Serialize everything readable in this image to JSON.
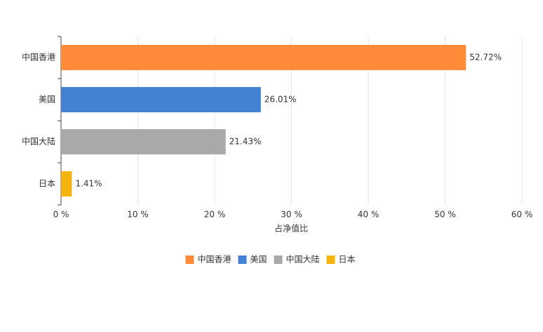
{
  "chart_data": {
    "type": "bar",
    "orientation": "horizontal",
    "categories": [
      "中国香港",
      "美国",
      "中国大陆",
      "日本"
    ],
    "values": [
      52.72,
      26.01,
      21.43,
      1.41
    ],
    "value_labels": [
      "52.72%",
      "26.01%",
      "21.43%",
      "1.41%"
    ],
    "colors": [
      "#ff8a3a",
      "#4282d2",
      "#a9a9a9",
      "#f6b50e"
    ],
    "x_label": "占净值比",
    "xlim": [
      0,
      60
    ],
    "xticks": [
      {
        "value": 0,
        "label": "0 %"
      },
      {
        "value": 10,
        "label": "10 %"
      },
      {
        "value": 20,
        "label": "20 %"
      },
      {
        "value": 30,
        "label": "30 %"
      },
      {
        "value": 40,
        "label": "40 %"
      },
      {
        "value": 50,
        "label": "50 %"
      },
      {
        "value": 60,
        "label": "60 %"
      }
    ],
    "grid": true,
    "legend": "bottom"
  }
}
